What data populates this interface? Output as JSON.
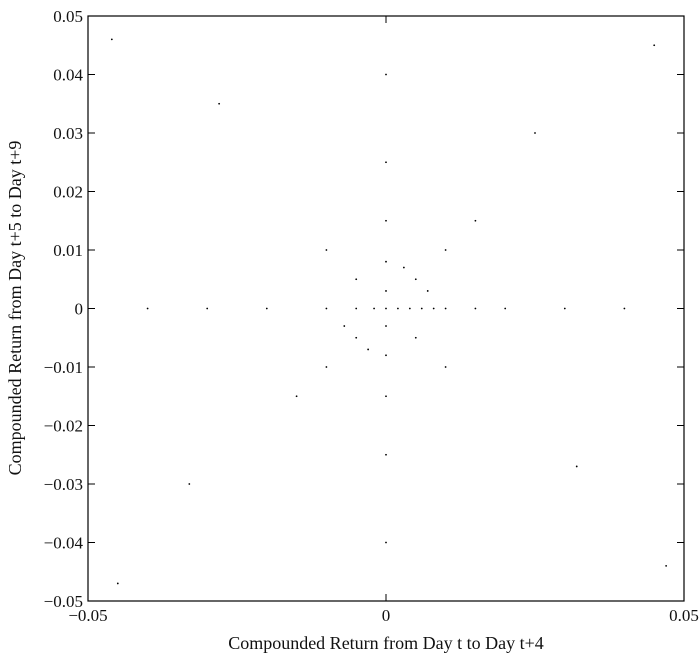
{
  "chart_data": {
    "type": "scatter",
    "title": "",
    "xlabel": "Compounded Return from Day t to Day t+4",
    "ylabel": "Compounded Return from Day t+5 to Day t+9",
    "xlim": [
      -0.05,
      0.05
    ],
    "ylim": [
      -0.05,
      0.05
    ],
    "x_ticks": [
      -0.05,
      0,
      0.05
    ],
    "x_tick_labels": [
      "−0.05",
      "0",
      "0.05"
    ],
    "y_ticks": [
      -0.05,
      -0.04,
      -0.03,
      -0.02,
      -0.01,
      0,
      0.01,
      0.02,
      0.03,
      0.04,
      0.05
    ],
    "y_tick_labels": [
      "−0.05",
      "−0.04",
      "−0.03",
      "−0.02",
      "−0.01",
      "0",
      "0.01",
      "0.02",
      "0.03",
      "0.04",
      "0.05"
    ],
    "grid": false,
    "legend": "none",
    "marker_color": "#000000",
    "series": [
      {
        "points": [
          [
            0.0,
            0.0
          ],
          [
            0.002,
            0.0
          ],
          [
            0.004,
            0.0
          ],
          [
            0.006,
            0.0
          ],
          [
            0.008,
            0.0
          ],
          [
            0.01,
            0.0
          ],
          [
            0.015,
            0.0
          ],
          [
            0.02,
            0.0
          ],
          [
            0.03,
            0.0
          ],
          [
            0.04,
            0.0
          ],
          [
            -0.002,
            0.0
          ],
          [
            -0.005,
            0.0
          ],
          [
            -0.01,
            0.0
          ],
          [
            -0.02,
            0.0
          ],
          [
            -0.03,
            0.0
          ],
          [
            -0.04,
            0.0
          ],
          [
            0.0,
            0.003
          ],
          [
            0.0,
            0.008
          ],
          [
            0.0,
            0.015
          ],
          [
            0.0,
            0.025
          ],
          [
            0.0,
            0.04
          ],
          [
            0.0,
            -0.003
          ],
          [
            0.0,
            -0.008
          ],
          [
            0.0,
            -0.015
          ],
          [
            0.0,
            -0.025
          ],
          [
            0.0,
            -0.04
          ],
          [
            0.005,
            0.005
          ],
          [
            0.01,
            0.01
          ],
          [
            0.015,
            0.015
          ],
          [
            -0.005,
            -0.005
          ],
          [
            -0.01,
            -0.01
          ],
          [
            -0.015,
            -0.015
          ],
          [
            0.005,
            -0.005
          ],
          [
            0.01,
            -0.01
          ],
          [
            -0.005,
            0.005
          ],
          [
            -0.01,
            0.01
          ],
          [
            0.003,
            0.007
          ],
          [
            0.007,
            0.003
          ],
          [
            -0.003,
            -0.007
          ],
          [
            -0.007,
            -0.003
          ],
          [
            0.025,
            0.03
          ],
          [
            -0.028,
            0.035
          ],
          [
            0.032,
            -0.027
          ],
          [
            -0.033,
            -0.03
          ],
          [
            0.045,
            0.045
          ],
          [
            -0.046,
            0.046
          ],
          [
            0.047,
            -0.044
          ],
          [
            -0.045,
            -0.047
          ]
        ]
      }
    ]
  }
}
